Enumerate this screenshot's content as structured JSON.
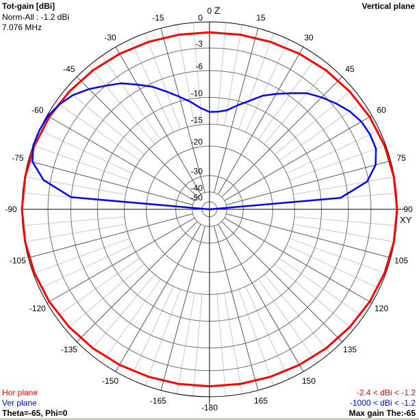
{
  "header": {
    "title": "Tot-gain [dBi]",
    "norm": "Norm-All : -1.2 dBi",
    "frequency": "7.076 MHz",
    "plane_title": "Vertical plane"
  },
  "axis_labels": {
    "top": "Z",
    "right": "XY"
  },
  "legend": {
    "hor_label": "Hor plane",
    "ver_label": "Ver plane",
    "hor_range": "-2.4 < dBi < -1.2",
    "ver_range": "-1000 < dBi < -1.2",
    "hor_color": "#ff0000",
    "ver_color": "#0000ff"
  },
  "footer": {
    "cursor": "Theta=-65, Phi=0",
    "max_gain": "Max gain The:-65"
  },
  "chart_data": {
    "type": "polar",
    "title": "Tot-gain [dBi]",
    "radial_scale": "log-compressed dB",
    "ring_labels": [
      "0",
      "-3",
      "-6",
      "-10",
      "-15",
      "-20",
      "-30",
      "-40",
      "-50"
    ],
    "ring_values": [
      0,
      -3,
      -6,
      -10,
      -15,
      -20,
      -30,
      -40,
      -50
    ],
    "angle_labels": [
      {
        "angle": 0,
        "text": "0"
      },
      {
        "angle": 15,
        "text": "15"
      },
      {
        "angle": 30,
        "text": "30"
      },
      {
        "angle": 45,
        "text": "45"
      },
      {
        "angle": 60,
        "text": "60"
      },
      {
        "angle": 75,
        "text": "75"
      },
      {
        "angle": 90,
        "text": "90"
      },
      {
        "angle": 105,
        "text": "105"
      },
      {
        "angle": 120,
        "text": "120"
      },
      {
        "angle": 135,
        "text": "135"
      },
      {
        "angle": 150,
        "text": "150"
      },
      {
        "angle": 165,
        "text": "165"
      },
      {
        "angle": 180,
        "text": "-180"
      },
      {
        "angle": -165,
        "text": "-165"
      },
      {
        "angle": -150,
        "text": "-150"
      },
      {
        "angle": -135,
        "text": "-135"
      },
      {
        "angle": -120,
        "text": "-120"
      },
      {
        "angle": -105,
        "text": "-105"
      },
      {
        "angle": -90,
        "text": "-90"
      },
      {
        "angle": -75,
        "text": "-75"
      },
      {
        "angle": -60,
        "text": "-60"
      },
      {
        "angle": -45,
        "text": "-45"
      },
      {
        "angle": -30,
        "text": "-30"
      },
      {
        "angle": -15,
        "text": "-15"
      }
    ],
    "grid": true,
    "series": [
      {
        "name": "Hor plane",
        "color": "#ff0000",
        "angles": [
          0,
          10,
          20,
          30,
          40,
          50,
          60,
          70,
          80,
          90,
          100,
          110,
          120,
          130,
          140,
          150,
          160,
          170,
          180,
          190,
          200,
          210,
          220,
          230,
          240,
          250,
          260,
          270,
          280,
          290,
          300,
          310,
          320,
          330,
          340,
          350
        ],
        "values": [
          -1.2,
          -1.16,
          -1.06,
          -0.9,
          -0.7,
          -0.5,
          -0.3,
          -0.14,
          -0.04,
          0,
          -0.04,
          -0.14,
          -0.3,
          -0.5,
          -0.7,
          -0.9,
          -1.06,
          -1.16,
          -1.2,
          -1.16,
          -1.06,
          -0.9,
          -0.7,
          -0.5,
          -0.3,
          -0.14,
          -0.04,
          0,
          -0.04,
          -0.14,
          -0.3,
          -0.5,
          -0.7,
          -0.9,
          -1.06,
          -1.16
        ]
      },
      {
        "name": "Ver plane",
        "color": "#0000ff",
        "angles": [
          -90,
          -85,
          -80,
          -75,
          -70,
          -65,
          -60,
          -55,
          -50,
          -45,
          -40,
          -35,
          -30,
          -25,
          -20,
          -15,
          -10,
          -5,
          0,
          5,
          10,
          15,
          20,
          25,
          30,
          35,
          40,
          45,
          50,
          55,
          60,
          65,
          70,
          75,
          80,
          85,
          90
        ],
        "values": [
          -100,
          -6,
          -2.2,
          -0.5,
          0,
          0,
          -0.1,
          -0.5,
          -1.1,
          -2,
          -3,
          -4,
          -5.3,
          -6.5,
          -8,
          -9.3,
          -10.5,
          -11.9,
          -12.7,
          -12.6,
          -12.1,
          -10.8,
          -9.5,
          -8,
          -6.8,
          -5.6,
          -4.3,
          -3.4,
          -2.6,
          -1.9,
          -1.4,
          -1.2,
          -1.2,
          -1.8,
          -3.2,
          -7.1,
          -100
        ]
      }
    ]
  }
}
